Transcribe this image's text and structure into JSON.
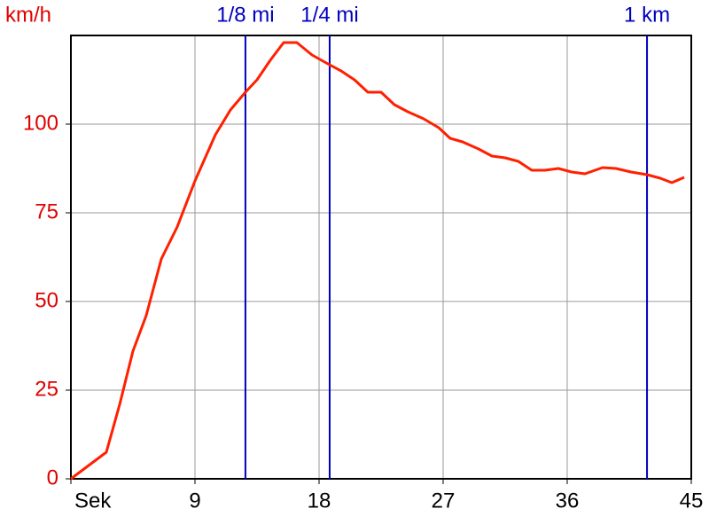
{
  "chart_data": {
    "type": "line",
    "y_label": "km/h",
    "x": [
      0,
      2.57,
      3.54,
      4.5,
      5.46,
      6.56,
      7.71,
      9,
      10.48,
      11.57,
      12.66,
      13.5,
      14.46,
      15.43,
      16.39,
      17.49,
      18.64,
      19.6,
      20.57,
      21.54,
      22.5,
      23.46,
      24.43,
      25.59,
      26.68,
      27.51,
      28.41,
      29.57,
      30.54,
      31.5,
      32.46,
      33.43,
      34.39,
      35.36,
      36.32,
      37.29,
      38.57,
      39.54,
      40.63,
      41.79,
      42.75,
      43.59,
      44.49
    ],
    "series": [
      {
        "color": "#ff2000",
        "values": [
          0,
          7.5,
          21,
          36,
          46,
          62,
          71,
          84,
          97,
          104,
          109,
          112.5,
          118,
          123,
          123,
          119.5,
          117,
          115,
          112.5,
          109,
          109,
          105.5,
          103.5,
          101.5,
          99,
          96,
          95,
          93,
          91,
          90.5,
          89.5,
          87,
          87,
          87.5,
          86.5,
          86,
          87.75,
          87.5,
          86.5,
          85.75,
          84.75,
          83.5,
          85
        ]
      }
    ],
    "xlim": [
      0,
      45
    ],
    "xticks": [
      {
        "value": 0,
        "label": "Sek"
      },
      9,
      18,
      27,
      36,
      45
    ],
    "ylim": [
      0,
      125
    ],
    "yticks": [
      0,
      25,
      50,
      75,
      100
    ],
    "grid": true,
    "y_tick_color": "#e00000",
    "marker_color": "#0000c0",
    "markers": [
      {
        "label": "1/8 mi",
        "x": 12.66
      },
      {
        "label": "1/4 mi",
        "x": 18.77
      },
      {
        "label": "1 km",
        "x": 41.79
      }
    ]
  }
}
